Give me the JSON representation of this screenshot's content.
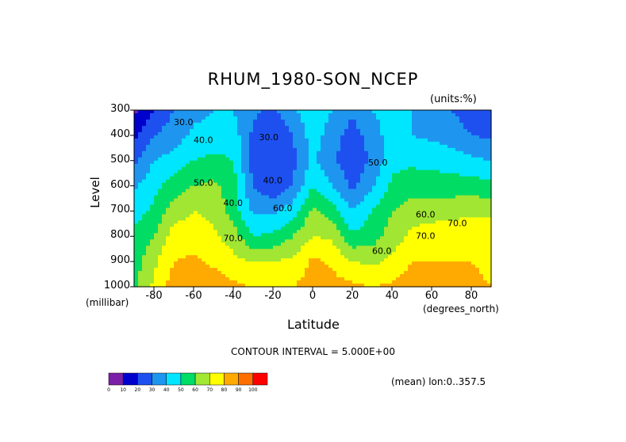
{
  "chart_data": {
    "type": "heatmap",
    "title": "RHUM_1980-SON_NCEP",
    "units_note": "(units:%)",
    "xlabel": "Latitude",
    "x_unit": "(degrees_north)",
    "ylabel": "Level",
    "y_unit": "(millibar)",
    "xlim": [
      -90,
      90
    ],
    "ylim": [
      1000,
      300
    ],
    "x_ticks": [
      "-80",
      "-60",
      "-40",
      "-20",
      "0",
      "20",
      "40",
      "60",
      "80"
    ],
    "y_ticks": [
      "300",
      "400",
      "500",
      "600",
      "700",
      "800",
      "900",
      "1000"
    ],
    "contour_interval_text": "CONTOUR INTERVAL = 5.000E+00",
    "footer_text": "(mean) lon:0..357.5",
    "contour_labels": [
      "30.0",
      "40.0",
      "30.0",
      "40.0",
      "60.0",
      "50.0",
      "40.0",
      "70.0",
      "50.0",
      "60.0",
      "70.0",
      "60.0",
      "70.0"
    ],
    "colorbar": {
      "levels": [
        "0",
        "10",
        "20",
        "30",
        "40",
        "50",
        "60",
        "70",
        "80",
        "90",
        "100"
      ],
      "colors": [
        "#7a1fa8",
        "#0000cd",
        "#1e50f0",
        "#1e96f0",
        "#00e6ff",
        "#00dc64",
        "#a0e632",
        "#ffff00",
        "#ffaa00",
        "#ff6e00",
        "#ff0000"
      ]
    },
    "latitudes": [
      -90,
      -80,
      -70,
      -60,
      -50,
      -40,
      -30,
      -20,
      -10,
      0,
      10,
      20,
      30,
      40,
      50,
      60,
      70,
      80,
      90
    ],
    "levels_mb": [
      300,
      400,
      500,
      600,
      700,
      800,
      900,
      1000
    ],
    "values": [
      [
        8,
        20,
        30,
        37,
        40,
        40,
        32,
        28,
        38,
        48,
        40,
        32,
        40,
        45,
        40,
        35,
        30,
        25,
        20
      ],
      [
        18,
        30,
        35,
        42,
        43,
        45,
        28,
        22,
        30,
        45,
        35,
        25,
        35,
        45,
        40,
        38,
        35,
        30,
        28
      ],
      [
        28,
        40,
        44,
        50,
        53,
        50,
        25,
        20,
        27,
        42,
        32,
        22,
        32,
        47,
        48,
        47,
        45,
        42,
        40
      ],
      [
        38,
        47,
        55,
        60,
        62,
        55,
        30,
        22,
        30,
        50,
        40,
        28,
        38,
        52,
        55,
        55,
        55,
        55,
        52
      ],
      [
        46,
        52,
        65,
        70,
        68,
        55,
        38,
        38,
        45,
        62,
        55,
        40,
        50,
        60,
        65,
        66,
        66,
        68,
        68
      ],
      [
        52,
        60,
        75,
        75,
        72,
        65,
        50,
        52,
        60,
        70,
        68,
        52,
        55,
        65,
        72,
        75,
        76,
        78,
        76
      ],
      [
        55,
        68,
        80,
        82,
        78,
        73,
        70,
        70,
        72,
        82,
        78,
        70,
        68,
        72,
        80,
        80,
        80,
        80,
        78
      ],
      [
        58,
        72,
        85,
        88,
        86,
        82,
        80,
        78,
        80,
        84,
        84,
        82,
        80,
        82,
        86,
        88,
        86,
        82,
        80
      ]
    ]
  }
}
